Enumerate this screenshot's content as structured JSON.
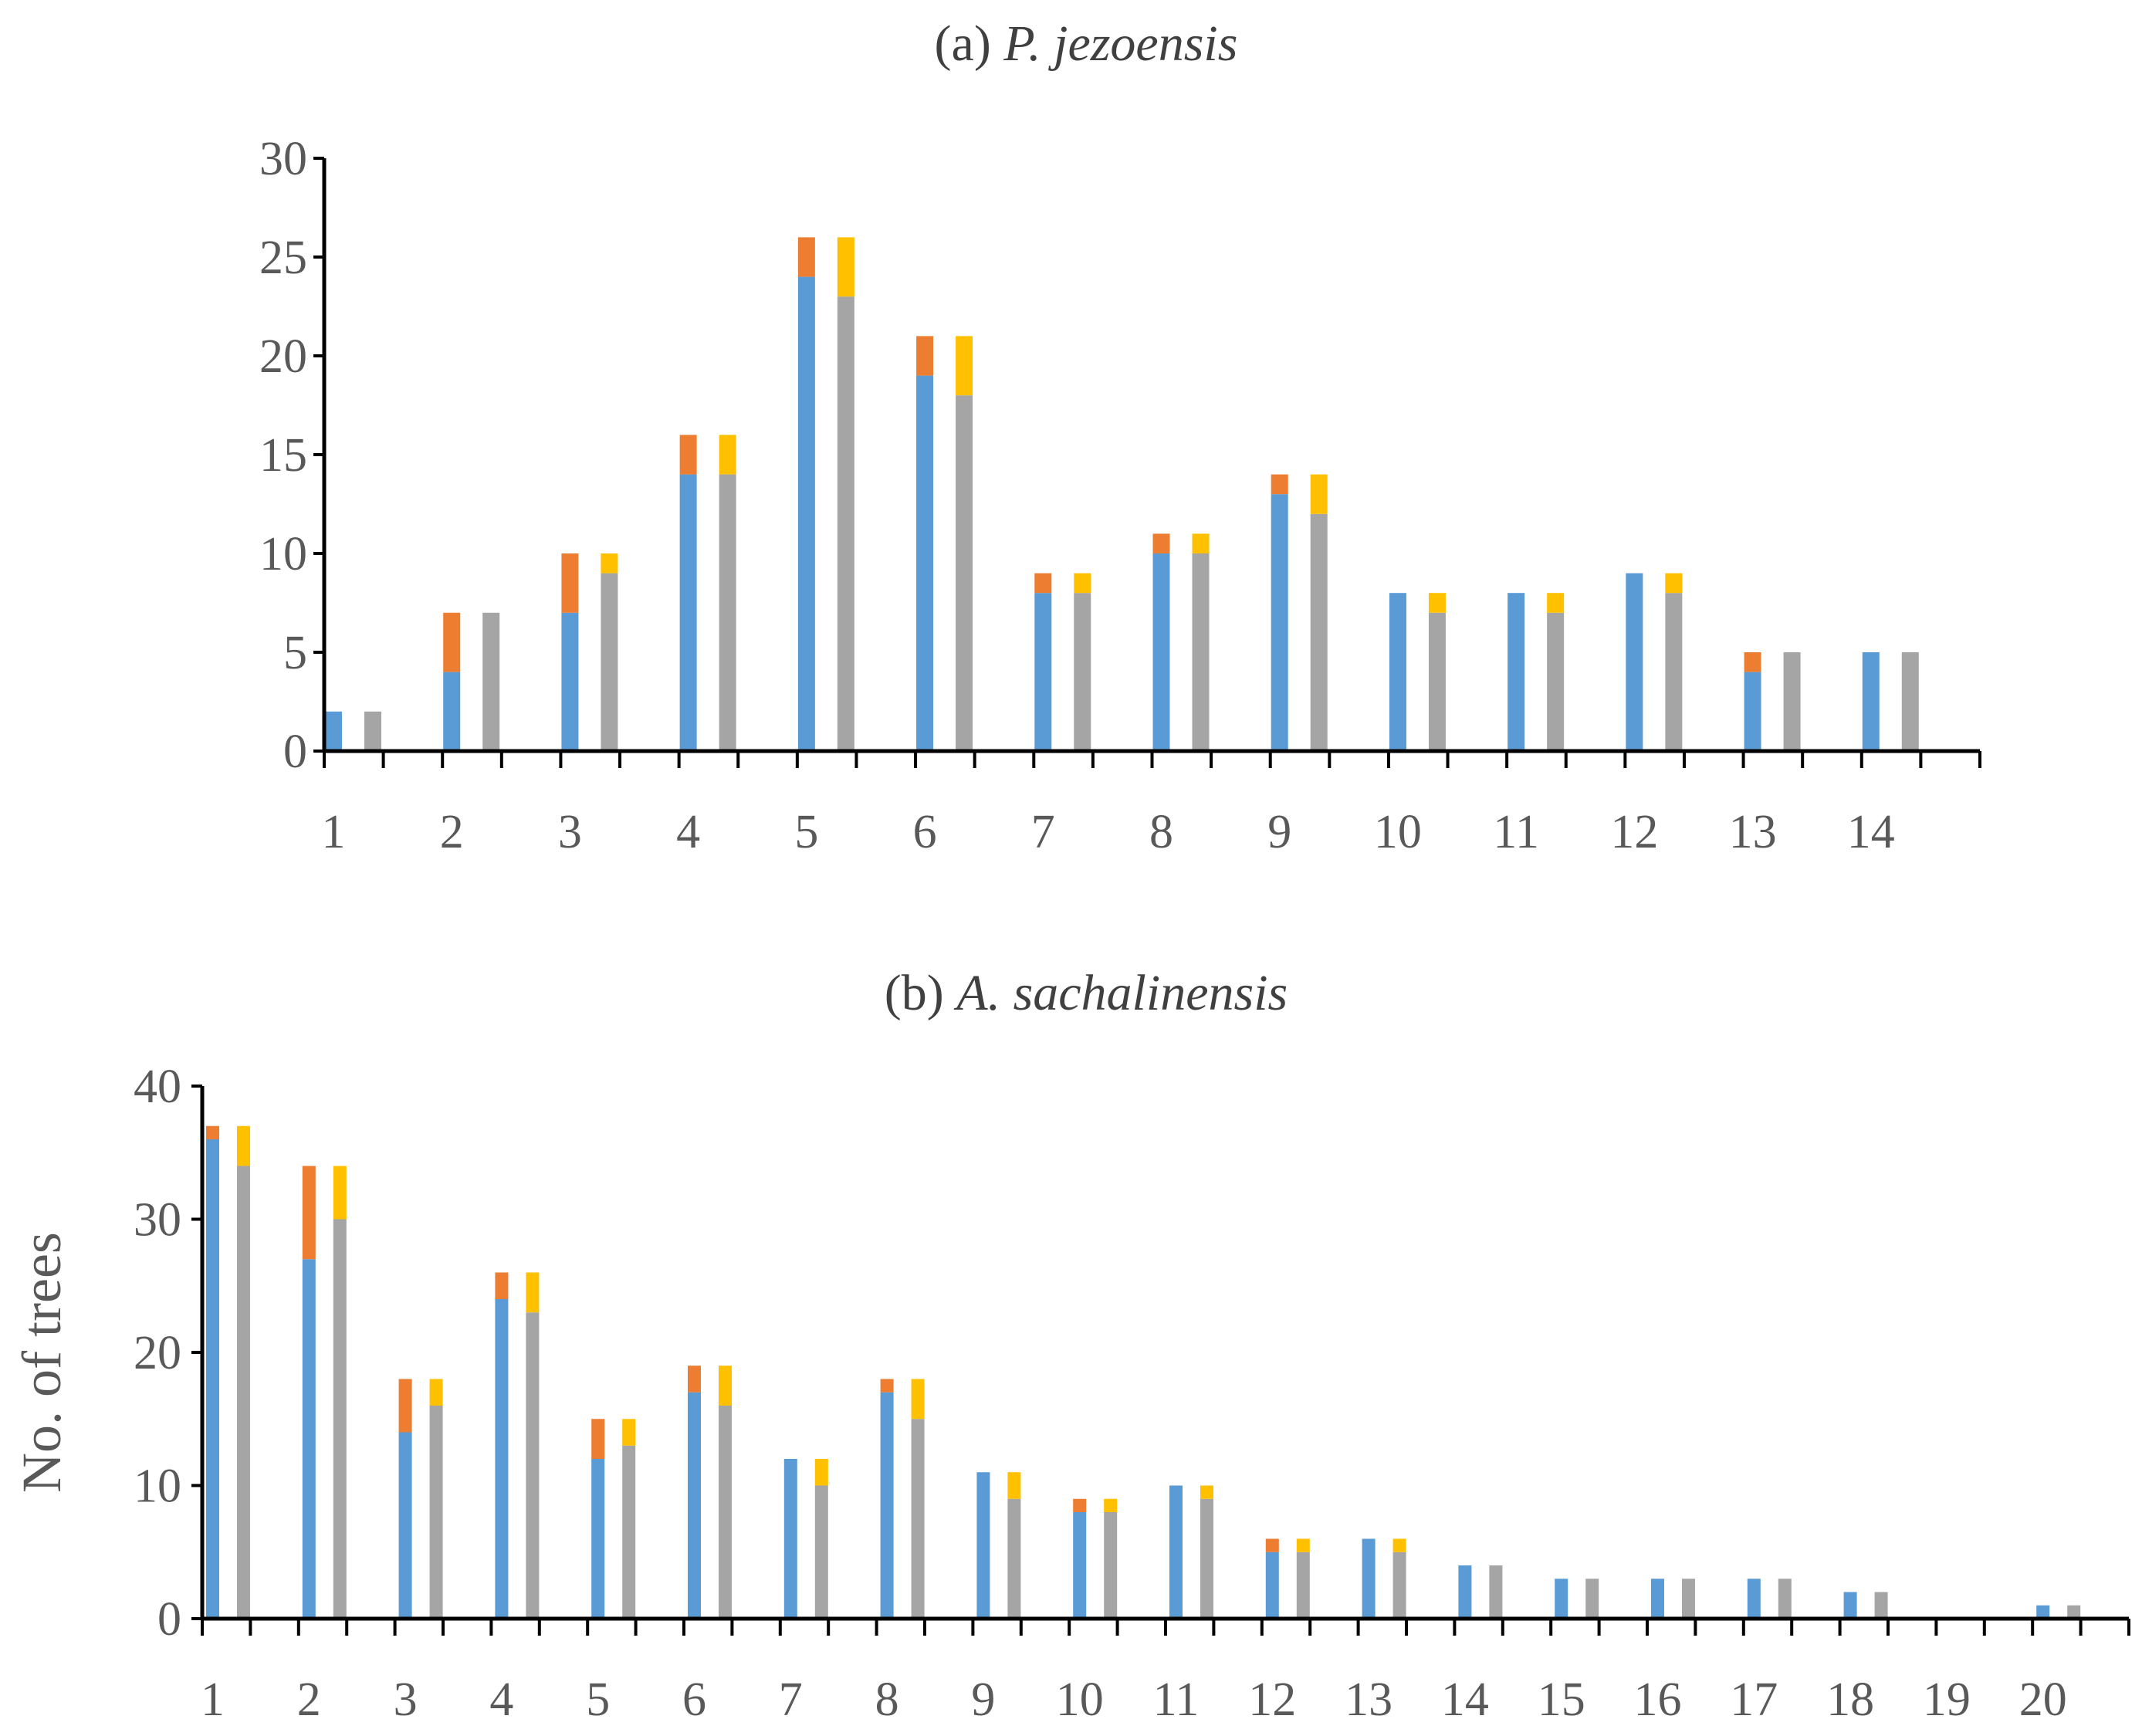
{
  "colors": {
    "blue": "#5b9bd5",
    "orange": "#ed7d31",
    "gray": "#a5a5a5",
    "yellow": "#ffc000",
    "axis": "#000000",
    "text": "#595959"
  },
  "chart_data": [
    {
      "type": "bar",
      "stacked": true,
      "title_prefix": "(a) ",
      "title_species": "P. jezoensis",
      "xlabel": "",
      "ylabel": "",
      "ylim": [
        0,
        30
      ],
      "yticks": [
        0,
        5,
        10,
        15,
        20,
        25,
        30
      ],
      "categories": [
        "1",
        "2",
        "3",
        "4",
        "5",
        "6",
        "7",
        "8",
        "9",
        "10",
        "11",
        "12",
        "13",
        "14"
      ],
      "series": [
        {
          "name": "blue",
          "stack": "left",
          "values": [
            2,
            4,
            7,
            14,
            24,
            19,
            8,
            10,
            13,
            8,
            8,
            9,
            4,
            5
          ]
        },
        {
          "name": "orange",
          "stack": "left",
          "values": [
            0,
            3,
            3,
            2,
            2,
            2,
            1,
            1,
            1,
            0,
            0,
            0,
            1,
            0
          ]
        },
        {
          "name": "gray",
          "stack": "right",
          "values": [
            2,
            7,
            9,
            14,
            23,
            18,
            8,
            10,
            12,
            7,
            7,
            8,
            5,
            5
          ]
        },
        {
          "name": "yellow",
          "stack": "right",
          "values": [
            0,
            0,
            1,
            2,
            3,
            3,
            1,
            1,
            2,
            1,
            1,
            1,
            0,
            0
          ]
        }
      ]
    },
    {
      "type": "bar",
      "stacked": true,
      "title_prefix": "(b) ",
      "title_species": "A. sachalinensis",
      "xlabel": "",
      "ylabel": "No. of trees",
      "ylim": [
        0,
        40
      ],
      "yticks": [
        0,
        10,
        20,
        30,
        40
      ],
      "categories": [
        "1",
        "2",
        "3",
        "4",
        "5",
        "6",
        "7",
        "8",
        "9",
        "10",
        "11",
        "12",
        "13",
        "14",
        "15",
        "16",
        "17",
        "18",
        "19",
        "20"
      ],
      "series": [
        {
          "name": "blue",
          "stack": "left",
          "values": [
            36,
            27,
            14,
            24,
            12,
            17,
            12,
            17,
            11,
            8,
            10,
            5,
            6,
            4,
            3,
            3,
            3,
            2,
            0,
            1
          ]
        },
        {
          "name": "orange",
          "stack": "left",
          "values": [
            1,
            7,
            4,
            2,
            3,
            2,
            0,
            1,
            0,
            1,
            0,
            1,
            0,
            0,
            0,
            0,
            0,
            0,
            0,
            0
          ]
        },
        {
          "name": "gray",
          "stack": "right",
          "values": [
            34,
            30,
            16,
            23,
            13,
            16,
            10,
            15,
            9,
            8,
            9,
            5,
            5,
            4,
            3,
            3,
            3,
            2,
            0,
            1
          ]
        },
        {
          "name": "yellow",
          "stack": "right",
          "values": [
            3,
            4,
            2,
            3,
            2,
            3,
            2,
            3,
            2,
            1,
            1,
            1,
            1,
            0,
            0,
            0,
            0,
            0,
            0,
            0
          ]
        }
      ]
    }
  ]
}
